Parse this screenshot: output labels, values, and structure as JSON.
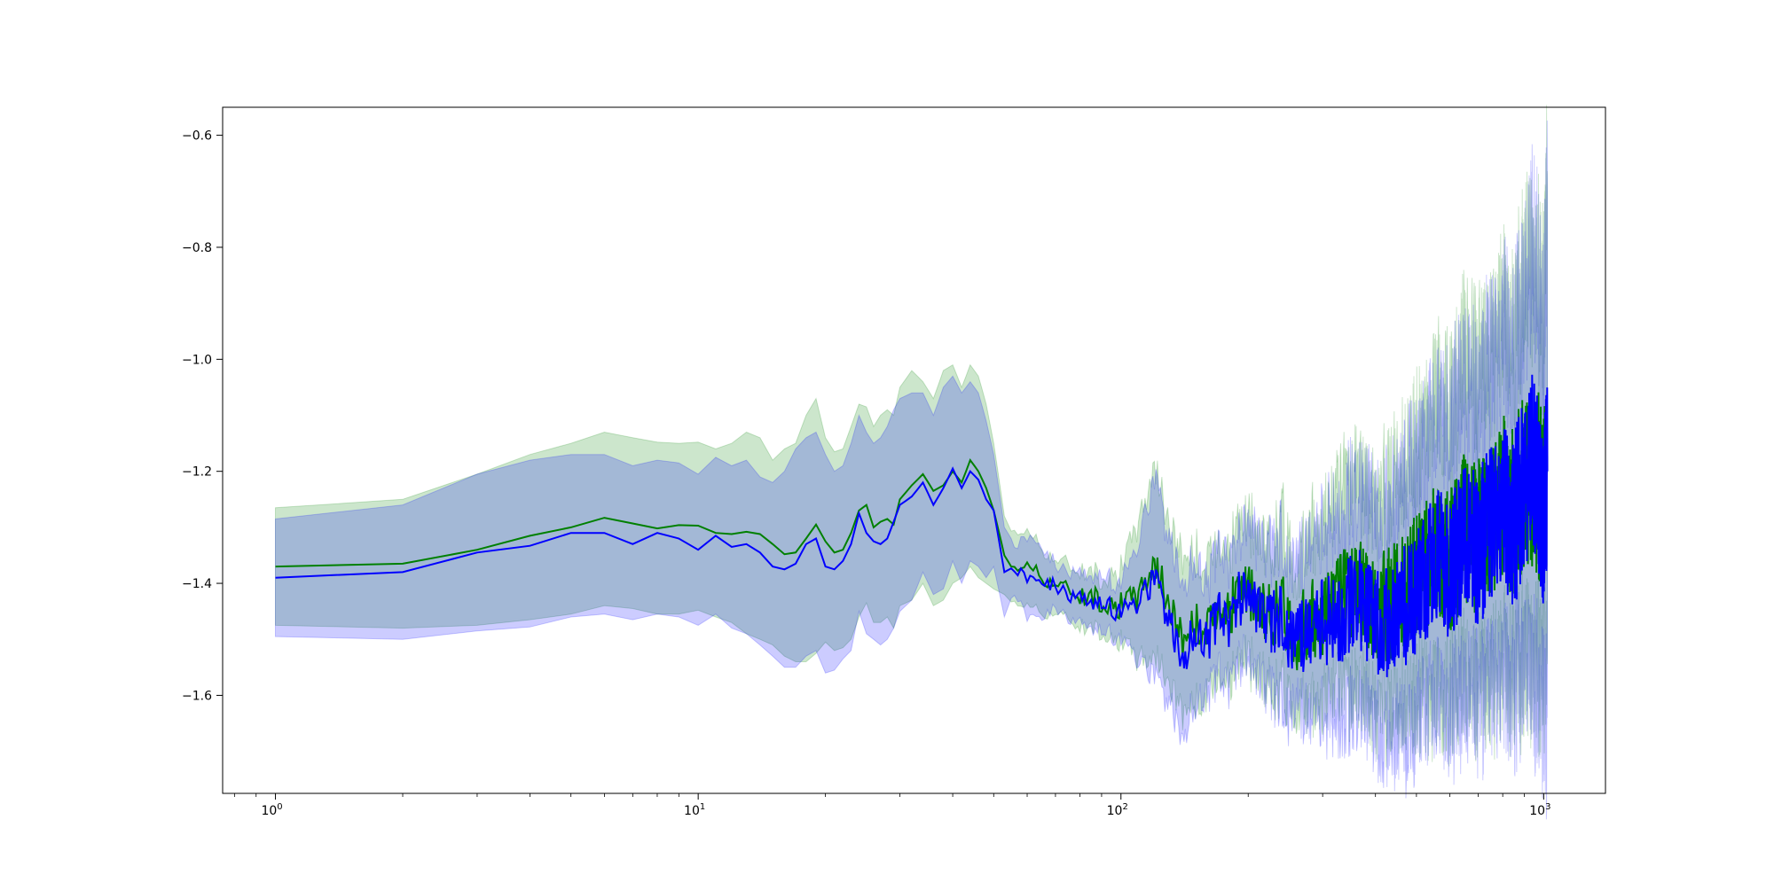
{
  "chart_data": {
    "type": "line",
    "title": "",
    "xlabel": "",
    "ylabel": "",
    "xscale": "log",
    "xlim": [
      0.75,
      1400
    ],
    "ylim": [
      -1.775,
      -0.55
    ],
    "grid": false,
    "legend": "none",
    "xticks": [
      {
        "value": 1,
        "base": "10",
        "exp": "0"
      },
      {
        "value": 10,
        "base": "10",
        "exp": "1"
      },
      {
        "value": 100,
        "base": "10",
        "exp": "2"
      },
      {
        "value": 1000,
        "base": "10",
        "exp": "3"
      }
    ],
    "yticks": [
      {
        "value": -0.6,
        "label": "−0.6"
      },
      {
        "value": -0.8,
        "label": "−0.8"
      },
      {
        "value": -1.0,
        "label": "−1.0"
      },
      {
        "value": -1.2,
        "label": "−1.2"
      },
      {
        "value": -1.4,
        "label": "−1.4"
      },
      {
        "value": -1.6,
        "label": "−1.6"
      }
    ],
    "series": [
      {
        "color": "#008000",
        "band_color": "#008000",
        "band_opacity": 0.2,
        "x": [
          1,
          2,
          3,
          4,
          5,
          6,
          7,
          8,
          9,
          10,
          11,
          12,
          13,
          14,
          15,
          16,
          17,
          18,
          19,
          20,
          21,
          22,
          23,
          24,
          25,
          26,
          27,
          28,
          29,
          30,
          32,
          34,
          36,
          38,
          40,
          42,
          44,
          46,
          48,
          50,
          53,
          56,
          60,
          65,
          70,
          75,
          80,
          90,
          100,
          110,
          120,
          130,
          140,
          150,
          160,
          170,
          180,
          190,
          200,
          220,
          240,
          260,
          280,
          300,
          330,
          360,
          400,
          440,
          480,
          520,
          560,
          600,
          650,
          700,
          750,
          800,
          850,
          900,
          950,
          1000,
          1020
        ],
        "y": [
          -1.37,
          -1.365,
          -1.34,
          -1.315,
          -1.3,
          -1.283,
          -1.293,
          -1.302,
          -1.296,
          -1.297,
          -1.31,
          -1.312,
          -1.308,
          -1.312,
          -1.33,
          -1.348,
          -1.345,
          -1.32,
          -1.295,
          -1.325,
          -1.345,
          -1.34,
          -1.31,
          -1.27,
          -1.26,
          -1.3,
          -1.29,
          -1.285,
          -1.295,
          -1.25,
          -1.225,
          -1.205,
          -1.235,
          -1.225,
          -1.2,
          -1.22,
          -1.18,
          -1.2,
          -1.23,
          -1.27,
          -1.35,
          -1.38,
          -1.36,
          -1.39,
          -1.4,
          -1.41,
          -1.42,
          -1.43,
          -1.44,
          -1.42,
          -1.36,
          -1.44,
          -1.5,
          -1.47,
          -1.49,
          -1.43,
          -1.45,
          -1.41,
          -1.42,
          -1.46,
          -1.44,
          -1.49,
          -1.47,
          -1.45,
          -1.43,
          -1.4,
          -1.45,
          -1.43,
          -1.4,
          -1.38,
          -1.33,
          -1.36,
          -1.3,
          -1.32,
          -1.28,
          -1.25,
          -1.27,
          -1.22,
          -1.2,
          -1.26,
          -1.2
        ],
        "upper": [
          -1.265,
          -1.25,
          -1.205,
          -1.17,
          -1.15,
          -1.13,
          -1.14,
          -1.148,
          -1.15,
          -1.148,
          -1.16,
          -1.15,
          -1.13,
          -1.14,
          -1.18,
          -1.16,
          -1.15,
          -1.1,
          -1.07,
          -1.14,
          -1.165,
          -1.16,
          -1.12,
          -1.08,
          -1.085,
          -1.12,
          -1.1,
          -1.09,
          -1.1,
          -1.05,
          -1.02,
          -1.04,
          -1.07,
          -1.02,
          -1.01,
          -1.05,
          -1.01,
          -1.03,
          -1.08,
          -1.15,
          -1.28,
          -1.32,
          -1.3,
          -1.34,
          -1.36,
          -1.37,
          -1.38,
          -1.39,
          -1.38,
          -1.3,
          -1.19,
          -1.3,
          -1.36,
          -1.35,
          -1.39,
          -1.32,
          -1.35,
          -1.3,
          -1.31,
          -1.35,
          -1.3,
          -1.38,
          -1.33,
          -1.3,
          -1.27,
          -1.21,
          -1.28,
          -1.24,
          -1.18,
          -1.16,
          -1.07,
          -1.12,
          -1.02,
          -1.06,
          -1.0,
          -0.95,
          -0.99,
          -0.88,
          -0.84,
          -0.95,
          -0.7
        ],
        "lower": [
          -1.475,
          -1.48,
          -1.475,
          -1.465,
          -1.455,
          -1.44,
          -1.445,
          -1.455,
          -1.455,
          -1.448,
          -1.46,
          -1.47,
          -1.49,
          -1.5,
          -1.51,
          -1.53,
          -1.54,
          -1.54,
          -1.525,
          -1.505,
          -1.52,
          -1.515,
          -1.5,
          -1.46,
          -1.435,
          -1.47,
          -1.47,
          -1.46,
          -1.48,
          -1.44,
          -1.43,
          -1.4,
          -1.44,
          -1.43,
          -1.4,
          -1.39,
          -1.37,
          -1.39,
          -1.4,
          -1.41,
          -1.42,
          -1.44,
          -1.43,
          -1.45,
          -1.45,
          -1.46,
          -1.47,
          -1.48,
          -1.5,
          -1.53,
          -1.52,
          -1.57,
          -1.62,
          -1.6,
          -1.6,
          -1.55,
          -1.56,
          -1.53,
          -1.53,
          -1.57,
          -1.57,
          -1.6,
          -1.6,
          -1.58,
          -1.58,
          -1.57,
          -1.6,
          -1.6,
          -1.59,
          -1.58,
          -1.56,
          -1.57,
          -1.55,
          -1.56,
          -1.54,
          -1.52,
          -1.53,
          -1.5,
          -1.49,
          -1.53,
          -1.52
        ]
      },
      {
        "color": "#0000ff",
        "band_color": "#0000ff",
        "band_opacity": 0.2,
        "x": [
          1,
          2,
          3,
          4,
          5,
          6,
          7,
          8,
          9,
          10,
          11,
          12,
          13,
          14,
          15,
          16,
          17,
          18,
          19,
          20,
          21,
          22,
          23,
          24,
          25,
          26,
          27,
          28,
          29,
          30,
          32,
          34,
          36,
          38,
          40,
          42,
          44,
          46,
          48,
          50,
          53,
          56,
          60,
          65,
          70,
          75,
          80,
          90,
          100,
          110,
          120,
          130,
          140,
          150,
          160,
          170,
          180,
          190,
          200,
          220,
          240,
          260,
          280,
          300,
          330,
          360,
          400,
          440,
          480,
          520,
          560,
          600,
          650,
          700,
          750,
          800,
          850,
          900,
          950,
          1000,
          1020
        ],
        "y": [
          -1.39,
          -1.38,
          -1.345,
          -1.333,
          -1.31,
          -1.31,
          -1.33,
          -1.31,
          -1.32,
          -1.34,
          -1.315,
          -1.335,
          -1.33,
          -1.345,
          -1.37,
          -1.375,
          -1.365,
          -1.33,
          -1.32,
          -1.37,
          -1.375,
          -1.36,
          -1.33,
          -1.275,
          -1.31,
          -1.325,
          -1.33,
          -1.32,
          -1.29,
          -1.26,
          -1.245,
          -1.22,
          -1.26,
          -1.23,
          -1.195,
          -1.23,
          -1.2,
          -1.215,
          -1.25,
          -1.27,
          -1.38,
          -1.37,
          -1.39,
          -1.4,
          -1.405,
          -1.42,
          -1.43,
          -1.435,
          -1.445,
          -1.43,
          -1.39,
          -1.47,
          -1.53,
          -1.49,
          -1.5,
          -1.45,
          -1.47,
          -1.42,
          -1.44,
          -1.48,
          -1.46,
          -1.51,
          -1.49,
          -1.47,
          -1.46,
          -1.42,
          -1.48,
          -1.46,
          -1.43,
          -1.4,
          -1.34,
          -1.38,
          -1.31,
          -1.34,
          -1.29,
          -1.26,
          -1.29,
          -1.22,
          -1.18,
          -1.28,
          -1.2
        ],
        "upper": [
          -1.285,
          -1.26,
          -1.205,
          -1.18,
          -1.17,
          -1.17,
          -1.19,
          -1.18,
          -1.185,
          -1.205,
          -1.175,
          -1.19,
          -1.18,
          -1.21,
          -1.22,
          -1.2,
          -1.16,
          -1.14,
          -1.13,
          -1.17,
          -1.2,
          -1.19,
          -1.15,
          -1.1,
          -1.13,
          -1.15,
          -1.14,
          -1.12,
          -1.09,
          -1.07,
          -1.06,
          -1.06,
          -1.1,
          -1.05,
          -1.03,
          -1.06,
          -1.04,
          -1.06,
          -1.11,
          -1.17,
          -1.3,
          -1.33,
          -1.32,
          -1.34,
          -1.37,
          -1.38,
          -1.39,
          -1.39,
          -1.4,
          -1.33,
          -1.22,
          -1.33,
          -1.4,
          -1.37,
          -1.41,
          -1.35,
          -1.37,
          -1.32,
          -1.33,
          -1.37,
          -1.33,
          -1.4,
          -1.35,
          -1.32,
          -1.3,
          -1.24,
          -1.31,
          -1.27,
          -1.21,
          -1.19,
          -1.1,
          -1.15,
          -1.05,
          -1.1,
          -1.03,
          -0.98,
          -1.02,
          -0.92,
          -0.82,
          -0.98,
          -0.76
        ],
        "lower": [
          -1.495,
          -1.5,
          -1.485,
          -1.478,
          -1.46,
          -1.455,
          -1.465,
          -1.455,
          -1.46,
          -1.475,
          -1.455,
          -1.48,
          -1.49,
          -1.51,
          -1.53,
          -1.55,
          -1.55,
          -1.53,
          -1.52,
          -1.56,
          -1.555,
          -1.535,
          -1.52,
          -1.45,
          -1.49,
          -1.5,
          -1.51,
          -1.5,
          -1.48,
          -1.45,
          -1.43,
          -1.38,
          -1.42,
          -1.41,
          -1.36,
          -1.4,
          -1.36,
          -1.37,
          -1.39,
          -1.37,
          -1.46,
          -1.41,
          -1.46,
          -1.46,
          -1.44,
          -1.46,
          -1.47,
          -1.48,
          -1.49,
          -1.53,
          -1.56,
          -1.61,
          -1.66,
          -1.61,
          -1.59,
          -1.55,
          -1.57,
          -1.52,
          -1.55,
          -1.59,
          -1.59,
          -1.62,
          -1.63,
          -1.62,
          -1.62,
          -1.6,
          -1.65,
          -1.65,
          -1.65,
          -1.61,
          -1.58,
          -1.61,
          -1.57,
          -1.58,
          -1.55,
          -1.54,
          -1.56,
          -1.52,
          -1.54,
          -1.58,
          -1.64
        ]
      }
    ]
  }
}
